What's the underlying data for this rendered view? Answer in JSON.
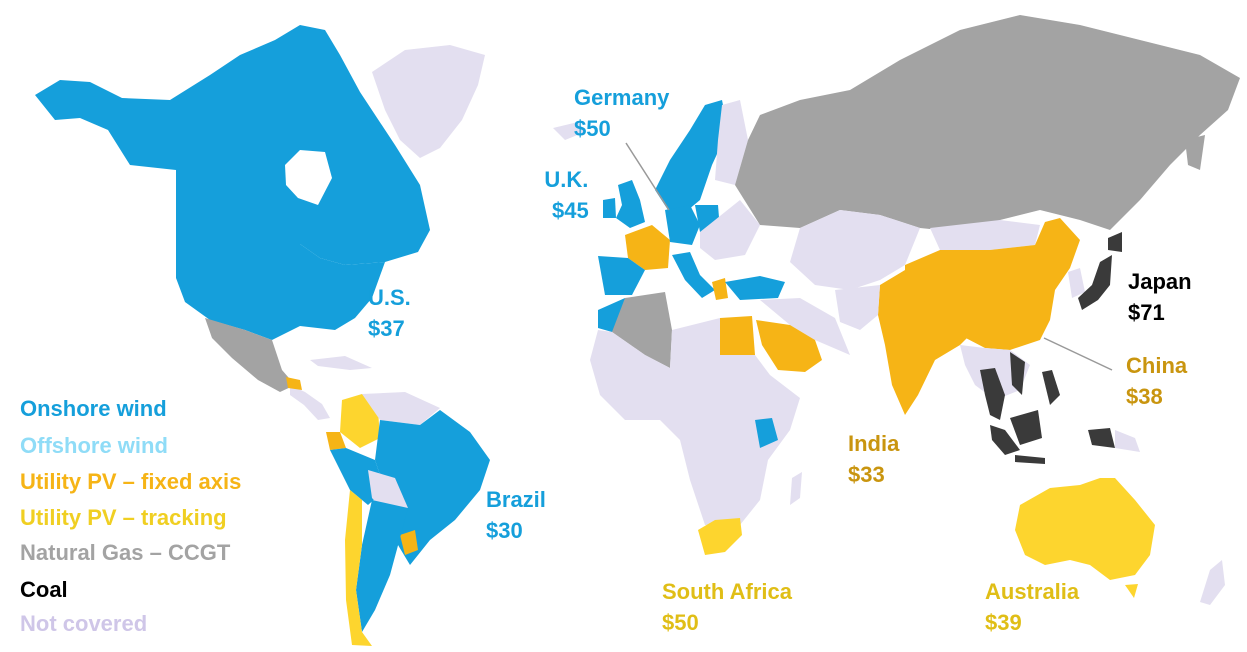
{
  "colors": {
    "onshore_wind": "#159fdb",
    "offshore_wind": "#8fdcf7",
    "utility_pv_fixed": "#f6b416",
    "utility_pv_tracking": "#fdd52e",
    "natural_gas": "#a3a3a3",
    "coal": "#3a3a3a",
    "not_covered": "#e3dff0"
  },
  "legend": [
    {
      "label": "Onshore wind",
      "color": "#159fdb"
    },
    {
      "label": "Offshore wind",
      "color": "#8fdcf7"
    },
    {
      "label": "Utility PV – fixed axis",
      "color": "#f6b416"
    },
    {
      "label": "Utility PV – tracking",
      "color": "#f0cf22"
    },
    {
      "label": "Natural Gas – CCGT",
      "color": "#a3a3a3"
    },
    {
      "label": "Coal",
      "color": "#000000"
    },
    {
      "label": "Not covered",
      "color": "#cfc6e8"
    }
  ],
  "callouts": {
    "germany": {
      "name": "Germany",
      "value": "$50",
      "technology": "Onshore wind"
    },
    "uk": {
      "name": "U.K.",
      "value": "$45",
      "technology": "Onshore wind"
    },
    "us": {
      "name": "U.S.",
      "value": "$37",
      "technology": "Onshore wind"
    },
    "brazil": {
      "name": "Brazil",
      "value": "$30",
      "technology": "Onshore wind"
    },
    "japan": {
      "name": "Japan",
      "value": "$71",
      "technology": "Coal"
    },
    "china": {
      "name": "China",
      "value": "$38",
      "technology": "Utility PV – fixed axis"
    },
    "india": {
      "name": "India",
      "value": "$33",
      "technology": "Utility PV – fixed axis"
    },
    "south_africa": {
      "name": "South Africa",
      "value": "$50",
      "technology": "Utility PV – tracking"
    },
    "australia": {
      "name": "Australia",
      "value": "$39",
      "technology": "Utility PV – tracking"
    }
  }
}
